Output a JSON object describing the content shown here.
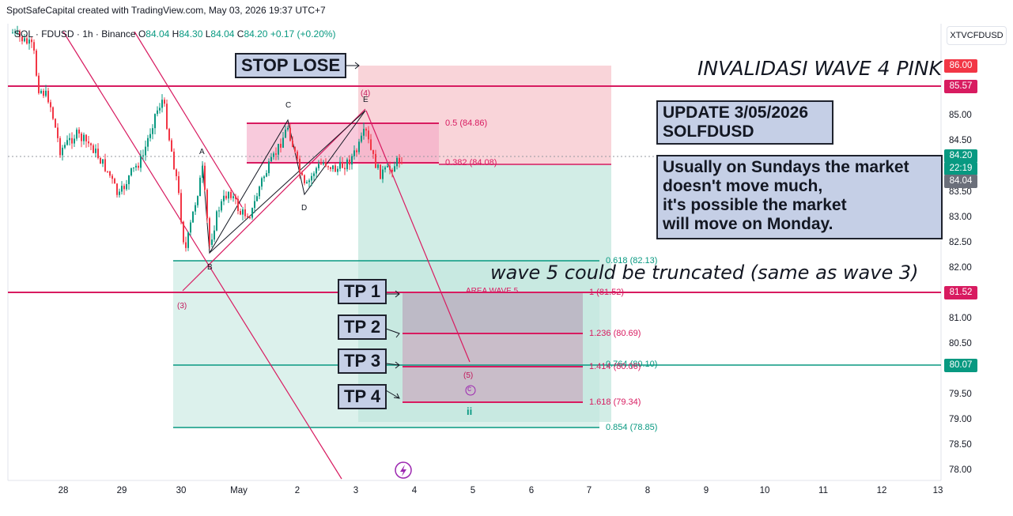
{
  "header": {
    "credit": "SpotSafeCapital created with TradingView.com, May 03, 2026 19:37 UTC+7",
    "symbol": "SOL · FDUSD · 1h · Binance",
    "open_label": "O",
    "open": "84.04",
    "high_label": "H",
    "high": "84.30",
    "low_label": "L",
    "low": "84.04",
    "close_label": "C",
    "close": "84.20",
    "change": "+0.17 (+0.20%)",
    "ticker_button": "XTVCFDUSD"
  },
  "colors": {
    "up": "#089981",
    "down": "#f23645",
    "pink_line": "#d81b60",
    "green_line": "#089981",
    "label_box": "#c5cfe6"
  },
  "price_axis": {
    "ticks": [
      "86.00",
      "85.50",
      "85.00",
      "84.50",
      "84.00",
      "83.50",
      "83.00",
      "82.50",
      "82.00",
      "81.50",
      "81.00",
      "80.50",
      "80.00",
      "79.50",
      "79.00",
      "78.50",
      "78.00"
    ],
    "tags": [
      {
        "text": "86.00",
        "color": "#f23645"
      },
      {
        "text": "85.57",
        "color": "#d81b60"
      },
      {
        "text": "84.20",
        "color": "#089981"
      },
      {
        "text": "22:19",
        "color": "#089981"
      },
      {
        "text": "84.04",
        "color": "#6b6f7a"
      },
      {
        "text": "81.52",
        "color": "#d81b60"
      },
      {
        "text": "80.07",
        "color": "#089981"
      }
    ]
  },
  "time_axis": [
    "28",
    "29",
    "30",
    "May",
    "2",
    "3",
    "4",
    "5",
    "6",
    "7",
    "8",
    "9",
    "10",
    "11",
    "12",
    "13"
  ],
  "annotations": {
    "stop_lose": "STOP LOSE",
    "invalidasi": "INVALIDASI WAVE 4 PINK",
    "update_line1": "UPDATE 3/05/2026",
    "update_line2": "SOLFDUSD",
    "note_line1": "Usually on Sundays the market",
    "note_line2": "doesn't move much,",
    "note_line3": "it's possible the market",
    "note_line4": "will move on Monday.",
    "wave5": "wave 5 could be truncated (same as wave 3)",
    "tp1": "TP 1",
    "tp2": "TP 2",
    "tp3": "TP 3",
    "tp4": "TP 4",
    "area_wave5": "AREA WAVE 5"
  },
  "fib_levels": {
    "f05": "0.5 (84.86)",
    "f0382": "0.382 (84.08)",
    "f0618": "0.618 (82.13)",
    "f1": "1 (81.52)",
    "f1236": "1.236 (80.69)",
    "f0764": "0.764 (80.10)",
    "f1414": "1.414 (80.06)",
    "f1618": "1.618 (79.34)",
    "f0854": "0.854 (78.85)"
  },
  "wave_points": {
    "A": "A",
    "B": "B",
    "C": "C",
    "D": "D",
    "E": "E",
    "w3": "(3)",
    "w4": "(4)",
    "w5": "(5)",
    "wc": "c",
    "wii": "ii"
  }
}
